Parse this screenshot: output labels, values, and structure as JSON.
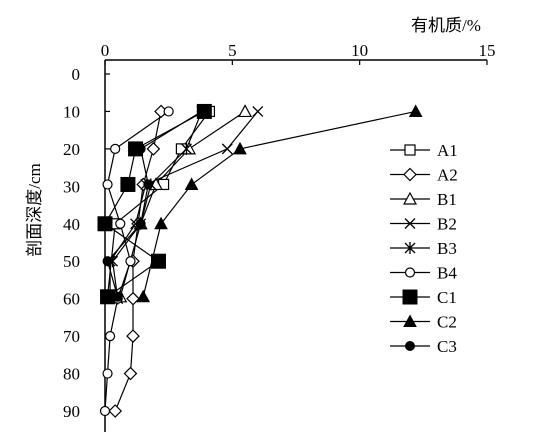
{
  "chart_data": {
    "type": "line",
    "xlabel": "有机质/%",
    "ylabel": "剖面深度/cm",
    "xlim": [
      0,
      15
    ],
    "ylim": [
      0,
      90
    ],
    "x_ticks": [
      0,
      5,
      10,
      15
    ],
    "y_ticks": [
      0,
      10,
      20,
      30,
      40,
      50,
      60,
      70,
      80,
      90
    ],
    "x_axis_position": "top",
    "y_inverted": true,
    "grid": false,
    "legend_position": "right",
    "series": [
      {
        "name": "A1",
        "marker": "open-square",
        "points": [
          [
            4.1,
            10
          ],
          [
            3.0,
            20
          ],
          [
            2.3,
            29.5
          ],
          [
            0.4,
            40
          ],
          [
            0.1,
            59.5
          ]
        ]
      },
      {
        "name": "A2",
        "marker": "open-diamond",
        "points": [
          [
            2.2,
            10
          ],
          [
            1.9,
            20
          ],
          [
            1.5,
            29.5
          ],
          [
            1.3,
            40
          ],
          [
            1.1,
            50
          ],
          [
            1.1,
            60
          ],
          [
            1.1,
            70
          ],
          [
            1.0,
            80
          ],
          [
            0.4,
            90
          ]
        ]
      },
      {
        "name": "B1",
        "marker": "open-triangle",
        "points": [
          [
            5.5,
            10
          ],
          [
            3.3,
            20
          ],
          [
            2.0,
            29.5
          ],
          [
            1.4,
            40
          ],
          [
            0.6,
            59.5
          ]
        ]
      },
      {
        "name": "B2",
        "marker": "x",
        "points": [
          [
            6.0,
            10
          ],
          [
            4.8,
            20
          ],
          [
            1.6,
            29.5
          ],
          [
            1.2,
            40
          ],
          [
            0.2,
            50
          ],
          [
            0.2,
            60
          ]
        ]
      },
      {
        "name": "B3",
        "marker": "star",
        "points": [
          [
            3.8,
            10
          ],
          [
            3.2,
            20
          ],
          [
            1.8,
            29.5
          ],
          [
            1.4,
            40
          ],
          [
            0.3,
            50
          ],
          [
            0.5,
            60
          ]
        ]
      },
      {
        "name": "B4",
        "marker": "open-circle",
        "points": [
          [
            2.5,
            10
          ],
          [
            0.4,
            20
          ],
          [
            0.1,
            29.5
          ],
          [
            0.6,
            40
          ],
          [
            1.0,
            50
          ],
          [
            0.5,
            60
          ],
          [
            0.2,
            70
          ],
          [
            0.1,
            80
          ],
          [
            0.0,
            90
          ]
        ]
      },
      {
        "name": "C1",
        "marker": "filled-square",
        "points": [
          [
            3.9,
            10
          ],
          [
            1.2,
            20
          ],
          [
            0.9,
            29.5
          ],
          [
            0.0,
            40
          ],
          [
            2.1,
            50
          ],
          [
            0.1,
            59.5
          ]
        ]
      },
      {
        "name": "C2",
        "marker": "filled-triangle",
        "points": [
          [
            12.2,
            10
          ],
          [
            5.3,
            20
          ],
          [
            3.4,
            29.5
          ],
          [
            2.2,
            40
          ],
          [
            1.5,
            59.5
          ]
        ]
      },
      {
        "name": "C3",
        "marker": "filled-circle",
        "points": [
          [
            3.8,
            10
          ],
          [
            1.4,
            20
          ],
          [
            1.7,
            29.5
          ],
          [
            1.4,
            40
          ],
          [
            0.1,
            50
          ],
          [
            0.5,
            59.5
          ]
        ]
      }
    ]
  }
}
